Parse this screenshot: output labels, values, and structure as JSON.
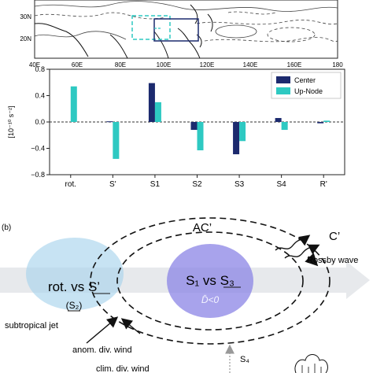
{
  "map": {
    "lat_labels": [
      "30N",
      "20N"
    ],
    "lon_labels": [
      "40E",
      "60E",
      "80E",
      "100E",
      "120E",
      "140E",
      "160E",
      "180"
    ]
  },
  "chart_data": {
    "type": "bar",
    "categories": [
      "rot.",
      "S'",
      "S1",
      "S2",
      "S3",
      "S4",
      "R'"
    ],
    "series": [
      {
        "name": "Center",
        "color": "#1c2a6e",
        "values": [
          null,
          0.01,
          0.59,
          -0.12,
          -0.49,
          0.06,
          -0.02
        ]
      },
      {
        "name": "Up-Node",
        "color": "#2ec9c2",
        "values": [
          0.54,
          -0.56,
          0.3,
          -0.43,
          -0.29,
          -0.12,
          0.02
        ]
      }
    ],
    "ylabel": "[10⁻¹⁰ s⁻²]",
    "ylim": [
      -0.8,
      0.8
    ],
    "yticks": [
      "0.8",
      "0.4",
      "0.0",
      "−0.4",
      "−0.8"
    ],
    "ytick_values": [
      0.8,
      0.4,
      0.0,
      -0.4,
      -0.8
    ],
    "legend_position": "top-right"
  },
  "schematic": {
    "panel_label": "(b)",
    "ac_label": "AC’",
    "c_label": "C’",
    "rossby_label": "Rossby wave",
    "rot_label": "rot. vs S’",
    "s2_label": "(S₂)",
    "s1s3_label": "S₁ vs S₃",
    "dbar_label": "D̄<0",
    "jet_label": "subtropical jet",
    "anom_label": "anom. div. wind",
    "clim_label": "clim. div. wind",
    "s4_label": "S₄"
  }
}
